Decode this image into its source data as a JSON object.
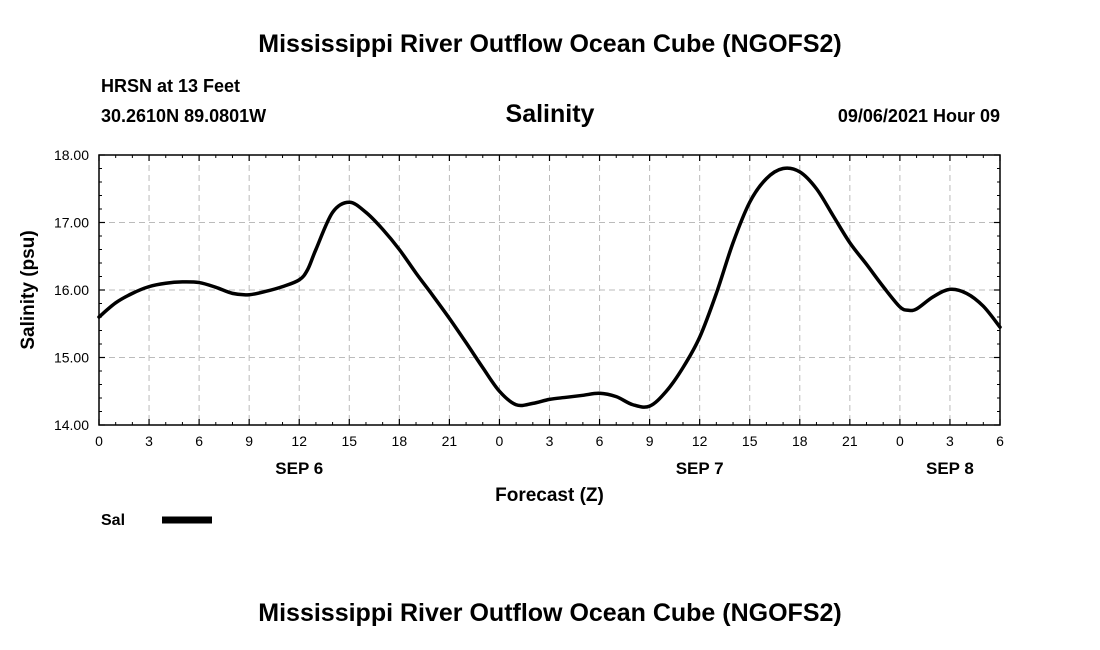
{
  "header": {
    "title": "Mississippi River Outflow Ocean Cube (NGOFS2)",
    "station": "HRSN at 13 Feet",
    "location": "30.2610N  89.0801W",
    "variable": "Salinity",
    "datetime": "09/06/2021 Hour 09"
  },
  "footer": {
    "title": "Mississippi River Outflow Ocean Cube (NGOFS2)"
  },
  "colors": {
    "line": "#000000",
    "grid": "#bbbbbb"
  },
  "chart_data": {
    "type": "line",
    "title": "Salinity",
    "xlabel": "Forecast (Z)",
    "ylabel": "Salinity (psu)",
    "xlim": [
      0,
      54
    ],
    "ylim": [
      14.0,
      18.0
    ],
    "grid": true,
    "legend_position": "bottom-left",
    "yticks": [
      14.0,
      15.0,
      16.0,
      17.0,
      18.0
    ],
    "ytick_labels": [
      "14.00",
      "15.00",
      "16.00",
      "17.00",
      "18.00"
    ],
    "xticks": [
      0,
      3,
      6,
      9,
      12,
      15,
      18,
      21,
      24,
      27,
      30,
      33,
      36,
      39,
      42,
      45,
      48,
      51,
      54
    ],
    "xtick_labels": [
      "0",
      "3",
      "6",
      "9",
      "12",
      "15",
      "18",
      "21",
      "0",
      "3",
      "6",
      "9",
      "12",
      "15",
      "18",
      "21",
      "0",
      "3",
      "6"
    ],
    "day_labels": [
      {
        "x": 12,
        "label": "SEP 6"
      },
      {
        "x": 36,
        "label": "SEP 7"
      },
      {
        "x": 51,
        "label": "SEP 8"
      }
    ],
    "series": [
      {
        "name": "Sal",
        "x": [
          0,
          1,
          2,
          3,
          4,
          5,
          6,
          7,
          8,
          9,
          10,
          11,
          12,
          12.5,
          13,
          14,
          15,
          16,
          17,
          18,
          19,
          20,
          21,
          22,
          23,
          24,
          25,
          26,
          27,
          28,
          29,
          30,
          31,
          32,
          33,
          34,
          35,
          36,
          37,
          38,
          39,
          40,
          41,
          42,
          43,
          44,
          45,
          46,
          47,
          48,
          48.5,
          49,
          50,
          51,
          52,
          53,
          54
        ],
        "values": [
          15.6,
          15.81,
          15.95,
          16.05,
          16.1,
          16.12,
          16.11,
          16.04,
          15.95,
          15.93,
          15.98,
          16.05,
          16.15,
          16.3,
          16.6,
          17.15,
          17.3,
          17.15,
          16.9,
          16.6,
          16.25,
          15.92,
          15.58,
          15.22,
          14.85,
          14.5,
          14.3,
          14.32,
          14.38,
          14.41,
          14.44,
          14.47,
          14.42,
          14.3,
          14.28,
          14.5,
          14.85,
          15.3,
          15.95,
          16.7,
          17.3,
          17.65,
          17.8,
          17.75,
          17.5,
          17.1,
          16.7,
          16.38,
          16.05,
          15.75,
          15.7,
          15.72,
          15.9,
          16.01,
          15.95,
          15.76,
          15.45
        ]
      }
    ]
  }
}
